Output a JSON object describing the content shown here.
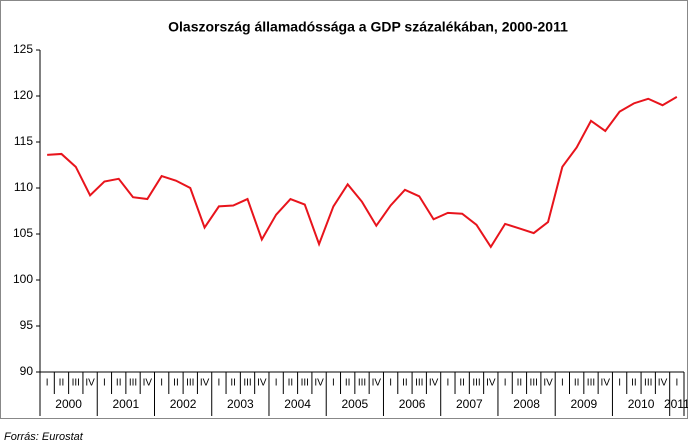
{
  "chart_data": {
    "type": "line",
    "title": "Olaszország államadóssága a GDP százalékában, 2000-2011",
    "categories": [
      "I",
      "II",
      "III",
      "IV",
      "I",
      "II",
      "III",
      "IV",
      "I",
      "II",
      "III",
      "IV",
      "I",
      "II",
      "III",
      "IV",
      "I",
      "II",
      "III",
      "IV",
      "I",
      "II",
      "III",
      "IV",
      "I",
      "II",
      "III",
      "IV",
      "I",
      "II",
      "III",
      "IV",
      "I",
      "II",
      "III",
      "IV",
      "I",
      "II",
      "III",
      "IV",
      "I",
      "II",
      "III",
      "IV",
      "I"
    ],
    "years": [
      "2000",
      "2001",
      "2002",
      "2003",
      "2004",
      "2005",
      "2006",
      "2007",
      "2008",
      "2009",
      "2010",
      "2011"
    ],
    "values": [
      113.6,
      113.7,
      112.3,
      109.2,
      110.7,
      111.0,
      109.0,
      108.8,
      111.3,
      110.8,
      110.0,
      105.7,
      108.0,
      108.1,
      108.8,
      104.4,
      107.1,
      108.8,
      108.2,
      103.9,
      108.0,
      110.4,
      108.5,
      105.9,
      108.1,
      109.8,
      109.1,
      106.6,
      107.3,
      107.2,
      106.0,
      103.6,
      106.1,
      105.6,
      105.1,
      106.3,
      112.3,
      114.4,
      117.3,
      116.2,
      118.3,
      119.2,
      119.7,
      119.0,
      119.9
    ],
    "color": "#e8141c",
    "ylim": [
      90,
      125
    ],
    "yticks": [
      90,
      95,
      100,
      105,
      110,
      115,
      120,
      125
    ],
    "source": "Forrás: Eurostat"
  }
}
